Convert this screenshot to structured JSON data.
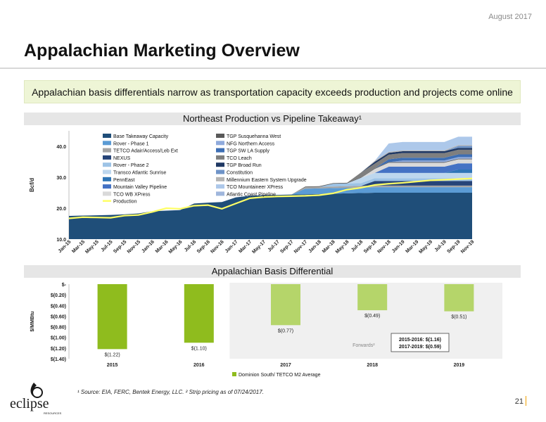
{
  "header": {
    "date": "August 2017",
    "title": "Appalachian Marketing Overview"
  },
  "banner": {
    "text": "Appalachian basis differentials narrow as transportation capacity exceeds production and projects come online"
  },
  "chart_data": [
    {
      "type": "area",
      "title": "Northeast Production vs Pipeline Takeaway¹",
      "ylabel": "Bcf/d",
      "ylim": [
        10,
        45
      ],
      "yticks": [
        "10.0",
        "20.0",
        "30.0",
        "40.0"
      ],
      "x": [
        "Jan-15",
        "Mar-15",
        "May-15",
        "Jul-15",
        "Sep-15",
        "Nov-15",
        "Jan-16",
        "Mar-16",
        "May-16",
        "Jul-16",
        "Sep-16",
        "Nov-16",
        "Jan-17",
        "Mar-17",
        "May-17",
        "Jul-17",
        "Sep-17",
        "Nov-17",
        "Jan-18",
        "Mar-18",
        "May-18",
        "Jul-18",
        "Sep-18",
        "Nov-18",
        "Jan-19",
        "Mar-19",
        "May-19",
        "Jul-19",
        "Sep-19",
        "Nov-19"
      ],
      "xtick_labels": [
        "Jan-15",
        "Mar-15",
        "May-15",
        "Jul-15",
        "Sep-15",
        "Nov-15",
        "Jan-16",
        "Mar-16",
        "May-16",
        "Jul-16",
        "Sep-16",
        "Nov-16",
        "Jan-17",
        "Mar-17",
        "May-17",
        "Jul-17",
        "Sep-17",
        "Nov-17",
        "Jan-18",
        "Mar-18",
        "May-18",
        "Jul-18",
        "Sep-18",
        "Nov-18",
        "Jan-19",
        "Mar-19",
        "May-19",
        "Jul-19",
        "Sep-19",
        "Nov-19"
      ],
      "series": [
        {
          "name": "Base Takeaway Capacity",
          "color": "#1f4e79",
          "values": [
            17.5,
            17.6,
            17.7,
            17.8,
            18.0,
            18.3,
            19.0,
            19.2,
            19.4,
            21.5,
            21.8,
            22.0,
            23.5,
            24.0,
            24.2,
            24.3,
            24.4,
            24.5,
            24.6,
            24.7,
            24.8,
            24.9,
            25.0,
            25.0,
            25.0,
            25.0,
            25.0,
            25.0,
            25.0,
            25.0
          ]
        },
        {
          "name": "Rover - Phase 1",
          "color": "#5b9bd5",
          "values": [
            0,
            0,
            0,
            0,
            0,
            0,
            0,
            0,
            0,
            0,
            0,
            0,
            0,
            0,
            0,
            0,
            0,
            1.8,
            1.8,
            1.8,
            1.8,
            1.8,
            1.8,
            1.8,
            1.8,
            1.8,
            1.8,
            1.8,
            1.8,
            1.8
          ]
        },
        {
          "name": "TETCO Adair/Access/Leb Ext",
          "color": "#a5a5a5",
          "values": [
            0,
            0,
            0,
            0,
            0,
            0,
            0,
            0,
            0,
            0,
            0,
            0,
            0,
            0,
            0,
            0,
            0,
            0.5,
            0.5,
            0.5,
            0.5,
            0.5,
            0.5,
            0.5,
            0.5,
            0.5,
            0.5,
            0.5,
            0.5,
            0.5
          ]
        },
        {
          "name": "NEXUS",
          "color": "#264478",
          "values": [
            0,
            0,
            0,
            0,
            0,
            0,
            0,
            0,
            0,
            0,
            0,
            0,
            0,
            0,
            0,
            0,
            0,
            0,
            0,
            0,
            0,
            0,
            1.5,
            1.5,
            1.5,
            1.5,
            1.5,
            1.5,
            1.5,
            1.5
          ]
        },
        {
          "name": "Rover - Phase 2",
          "color": "#9dc3e6",
          "values": [
            0,
            0,
            0,
            0,
            0,
            0,
            0,
            0,
            0,
            0,
            0,
            0,
            0,
            0,
            0,
            0,
            0,
            0,
            0,
            0.9,
            0.9,
            0.9,
            0.9,
            0.9,
            0.9,
            0.9,
            0.9,
            0.9,
            0.9,
            0.9
          ]
        },
        {
          "name": "Transco Atlantic Sunrise",
          "color": "#bdd7ee",
          "values": [
            0,
            0,
            0,
            0,
            0,
            0,
            0,
            0,
            0,
            0,
            0,
            0,
            0,
            0,
            0,
            0,
            0,
            0,
            0,
            0,
            0,
            1.7,
            1.7,
            1.7,
            1.7,
            1.7,
            1.7,
            1.7,
            1.7,
            1.7
          ]
        },
        {
          "name": "PennEast",
          "color": "#2e75b6",
          "values": [
            0,
            0,
            0,
            0,
            0,
            0,
            0,
            0,
            0,
            0,
            0,
            0,
            0,
            0,
            0,
            0,
            0,
            0,
            0,
            0,
            0,
            0,
            0,
            0,
            0,
            0,
            0,
            0,
            1.1,
            1.1
          ]
        },
        {
          "name": "Mountain Valley Pipeline",
          "color": "#4472c4",
          "values": [
            0,
            0,
            0,
            0,
            0,
            0,
            0,
            0,
            0,
            0,
            0,
            0,
            0,
            0,
            0,
            0,
            0,
            0,
            0,
            0,
            0,
            0,
            0,
            2.0,
            2.0,
            2.0,
            2.0,
            2.0,
            2.0,
            2.0
          ]
        },
        {
          "name": "TCO WB XPress",
          "color": "#d9d9d9",
          "values": [
            0,
            0,
            0,
            0,
            0,
            0,
            0,
            0,
            0,
            0,
            0,
            0,
            0,
            0,
            0,
            0,
            0,
            0,
            0,
            0,
            0,
            0,
            1.3,
            1.3,
            1.3,
            1.3,
            1.3,
            1.3,
            1.3,
            1.3
          ]
        },
        {
          "name": "TGP Susquehanna West",
          "color": "#595959",
          "values": [
            0,
            0,
            0,
            0,
            0,
            0,
            0,
            0,
            0,
            0,
            0,
            0,
            0,
            0,
            0,
            0,
            0,
            0.2,
            0.2,
            0.2,
            0.2,
            0.2,
            0.2,
            0.2,
            0.2,
            0.2,
            0.2,
            0.2,
            0.2,
            0.2
          ]
        },
        {
          "name": "NFG Northern Access",
          "color": "#8faadc",
          "values": [
            0,
            0,
            0,
            0,
            0,
            0,
            0,
            0,
            0,
            0,
            0,
            0,
            0,
            0,
            0,
            0,
            0,
            0,
            0,
            0,
            0,
            0,
            0,
            0,
            0.5,
            0.5,
            0.5,
            0.5,
            0.5,
            0.5
          ]
        },
        {
          "name": "TGP SW LA Supply",
          "color": "#3d6eb4",
          "values": [
            0,
            0,
            0,
            0,
            0,
            0,
            0,
            0,
            0,
            0,
            0,
            0,
            0,
            0,
            0,
            0,
            0,
            0,
            0,
            0,
            0,
            0,
            0,
            0.9,
            0.9,
            0.9,
            0.9,
            0.9,
            0.9,
            0.9
          ]
        },
        {
          "name": "TCO Leach",
          "color": "#7f7f7f",
          "values": [
            0,
            0,
            0,
            0,
            0,
            0,
            0,
            0,
            0,
            0,
            0,
            0,
            0,
            0,
            0,
            0,
            0,
            0,
            0,
            0,
            0,
            1.5,
            1.5,
            1.5,
            1.5,
            1.5,
            1.5,
            1.5,
            1.5,
            1.5
          ]
        },
        {
          "name": "TGP Broad Run",
          "color": "#1f3864",
          "values": [
            0,
            0,
            0,
            0,
            0,
            0,
            0,
            0,
            0,
            0,
            0,
            0,
            0,
            0,
            0,
            0,
            0,
            0,
            0,
            0,
            0,
            0,
            0.6,
            0.6,
            0.6,
            0.6,
            0.6,
            0.6,
            0.6,
            0.6
          ]
        },
        {
          "name": "Constitution",
          "color": "#6f94c8",
          "values": [
            0,
            0,
            0,
            0,
            0,
            0,
            0,
            0,
            0,
            0,
            0,
            0,
            0,
            0,
            0,
            0,
            0,
            0,
            0,
            0,
            0,
            0,
            0,
            0,
            0,
            0,
            0,
            0,
            0.6,
            0.6
          ]
        },
        {
          "name": "Millennium Eastern System Upgrade",
          "color": "#b4b4b4",
          "values": [
            0,
            0,
            0,
            0,
            0,
            0,
            0,
            0,
            0,
            0,
            0,
            0,
            0,
            0,
            0,
            0,
            0,
            0,
            0,
            0,
            0,
            0,
            0.3,
            0.3,
            0.3,
            0.3,
            0.3,
            0.3,
            0.3,
            0.3
          ]
        },
        {
          "name": "TCO Mountaineer XPress",
          "color": "#adc8ea",
          "values": [
            0,
            0,
            0,
            0,
            0,
            0,
            0,
            0,
            0,
            0,
            0,
            0,
            0,
            0,
            0,
            0,
            0,
            0,
            0,
            0,
            0,
            0,
            0,
            2.7,
            2.7,
            2.7,
            2.7,
            2.7,
            2.7,
            2.7
          ]
        },
        {
          "name": "Atlantic Coast Pipeline",
          "color": "#9fb6dc",
          "values": [
            0,
            0,
            0,
            0,
            0,
            0,
            0,
            0,
            0,
            0,
            0,
            0,
            0,
            0,
            0,
            0,
            0,
            0,
            0,
            0,
            0,
            0,
            0,
            0,
            0,
            0,
            0,
            0,
            0,
            0
          ]
        }
      ],
      "line": {
        "name": "Production",
        "color": "#ffff66",
        "values": [
          16.7,
          17.1,
          17.0,
          16.9,
          17.6,
          17.8,
          18.8,
          20.0,
          19.8,
          20.8,
          21.0,
          19.8,
          21.5,
          23.2,
          23.6,
          23.8,
          23.9,
          24.0,
          24.2,
          24.8,
          26.0,
          26.6,
          27.5,
          27.9,
          28.2,
          28.6,
          29.0,
          29.2,
          29.4,
          29.6
        ]
      }
    },
    {
      "type": "bar",
      "title": "Appalachian Basis Differential",
      "ylabel": "$/MMBtu",
      "ylim": [
        -1.4,
        0
      ],
      "yticks": [
        "$-",
        "$(0.20)",
        "$(0.40)",
        "$(0.60)",
        "$(0.80)",
        "$(1.00)",
        "$(1.20)",
        "$(1.40)"
      ],
      "categories": [
        "2015",
        "2016",
        "2017",
        "2018",
        "2019"
      ],
      "values": [
        -1.22,
        -1.1,
        -0.77,
        -0.49,
        -0.51
      ],
      "data_labels": [
        "$(1.22)",
        "$(1.10)",
        "$(0.77)",
        "$(0.49)",
        "$(0.51)"
      ],
      "colors": [
        "#8fbc1e",
        "#8fbc1e",
        "#b5d56a",
        "#b5d56a",
        "#b5d56a"
      ],
      "series": [
        {
          "name": "Dominion South/ TETCO M2 Average",
          "color": "#8fbc1e",
          "values": [
            -1.22,
            -1.1,
            -0.77,
            -0.49,
            -0.51
          ]
        }
      ],
      "annotations": {
        "forwards": "Forwards²",
        "summary_1": "2015-2016: $(1.16)",
        "summary_2": "2017-2019: $(0.59)"
      }
    }
  ],
  "footnote": "¹ Source: EIA, FERC, Bentek Energy, LLC. ² Strip pricing as of 07/24/2017.",
  "page_number": "21",
  "logo": {
    "text": "eclipse",
    "subtext": "RESOURCES"
  }
}
